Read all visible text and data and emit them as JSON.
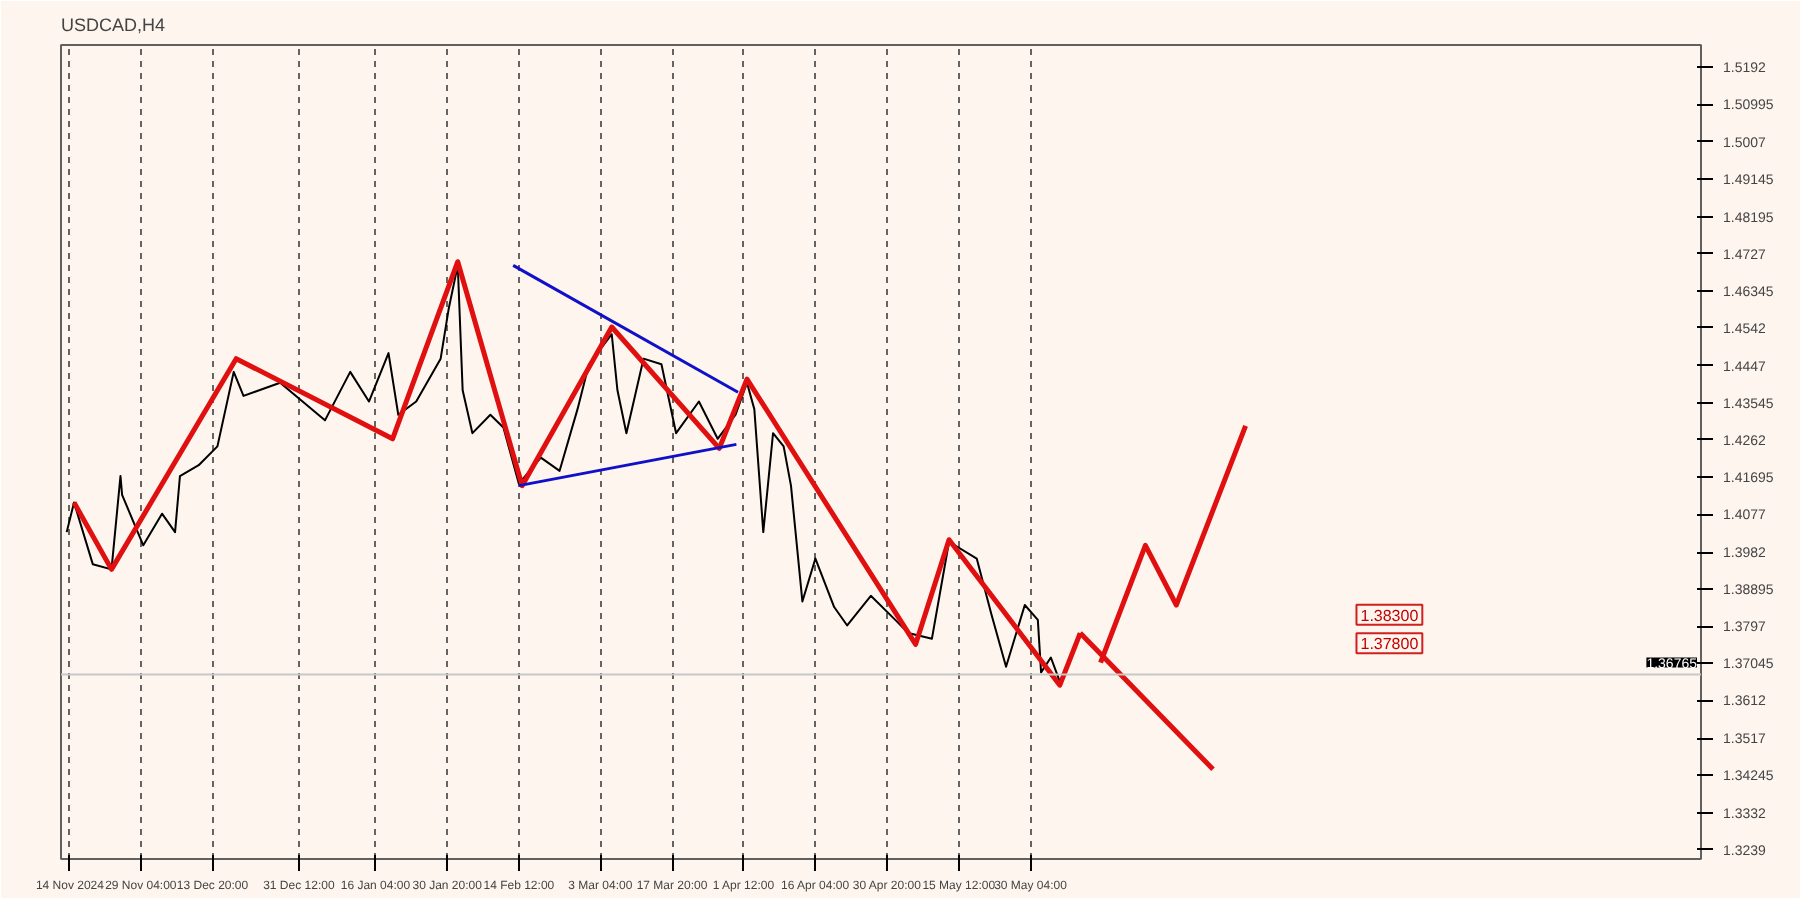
{
  "chart_data": {
    "type": "line",
    "title": "USDCAD,H4",
    "xlim": [
      "2024-11-12T20:00",
      "2025-10-14T08:00"
    ],
    "ylim": [
      1.3216,
      1.5248
    ],
    "xticks": [
      {
        "value": "2024-11-14T16:00",
        "label": "14 Nov 2024"
      },
      {
        "value": "2024-11-29T04:00",
        "label": "29 Nov 04:00"
      },
      {
        "value": "2024-12-13T20:00",
        "label": "13 Dec 20:00"
      },
      {
        "value": "2024-12-31T12:00",
        "label": "31 Dec 12:00"
      },
      {
        "value": "2025-01-16T04:00",
        "label": "16 Jan 04:00"
      },
      {
        "value": "2025-01-30T20:00",
        "label": "30 Jan 20:00"
      },
      {
        "value": "2025-02-14T12:00",
        "label": "14 Feb 12:00"
      },
      {
        "value": "2025-03-03T04:00",
        "label": "3 Mar 04:00"
      },
      {
        "value": "2025-03-17T20:00",
        "label": "17 Mar 20:00"
      },
      {
        "value": "2025-04-01T12:00",
        "label": "1 Apr 12:00"
      },
      {
        "value": "2025-04-16T04:00",
        "label": "16 Apr 04:00"
      },
      {
        "value": "2025-04-30T20:00",
        "label": "30 Apr 20:00"
      },
      {
        "value": "2025-05-15T12:00",
        "label": "15 May 12:00"
      },
      {
        "value": "2025-05-30T04:00",
        "label": "30 May 04:00"
      }
    ],
    "yticks": [
      1.3239,
      1.3332,
      1.34245,
      1.3517,
      1.3612,
      1.37045,
      1.3797,
      1.38895,
      1.3982,
      1.4077,
      1.41695,
      1.4262,
      1.43545,
      1.4447,
      1.4542,
      1.46345,
      1.4727,
      1.48195,
      1.49145,
      1.5007,
      1.50995,
      1.5192
    ],
    "grid": "x",
    "line_style": "solid",
    "marker": "none",
    "series": [
      {
        "color": "#000000",
        "x": [
          "2024-11-14T00:00",
          "2024-11-15T12:00",
          "2024-11-19T08:00",
          "2024-11-23T04:00",
          "2024-11-25T00:00",
          "2024-11-25T08:00",
          "2024-11-29T16:00",
          "2024-12-03T12:00",
          "2024-12-06T04:00",
          "2024-12-07T04:00",
          "2024-12-11T00:00",
          "2024-12-14T20:00",
          "2024-12-18T04:00",
          "2024-12-20T04:00",
          "2024-12-27T16:00",
          "2025-01-05T20:00",
          "2025-01-11T00:00",
          "2025-01-14T20:00",
          "2025-01-18T20:00",
          "2025-01-20T20:00",
          "2025-01-24T12:00",
          "2025-01-29T12:00",
          "2025-01-31T04:00",
          "2025-02-02T00:00",
          "2025-02-03T00:00",
          "2025-02-05T00:00",
          "2025-02-08T16:00",
          "2025-02-11T08:00",
          "2025-02-14T12:00",
          "2025-02-19T00:00",
          "2025-02-22T20:00",
          "2025-02-26T12:00",
          "2025-02-28T20:00",
          "2025-03-05T12:00",
          "2025-03-06T16:00",
          "2025-03-08T12:00",
          "2025-03-12T00:00",
          "2025-03-15T16:00",
          "2025-03-18T16:00",
          "2025-03-23T08:00",
          "2025-03-27T04:00",
          "2025-03-30T20:00",
          "2025-04-02T04:00",
          "2025-04-03T16:00",
          "2025-04-05T12:00",
          "2025-04-07T12:00",
          "2025-04-09T16:00",
          "2025-04-11T04:00",
          "2025-04-13T12:00",
          "2025-04-16T04:00",
          "2025-04-20T00:00",
          "2025-04-22T16:00",
          "2025-04-27T12:00",
          "2025-05-02T12:00",
          "2025-05-05T04:00",
          "2025-05-10T00:00",
          "2025-05-13T12:00",
          "2025-05-19T04:00",
          "2025-05-22T04:00",
          "2025-05-25T04:00",
          "2025-05-29T00:00",
          "2025-05-31T16:00",
          "2025-06-01T08:00",
          "2025-06-03T08:00",
          "2025-06-05T04:00"
        ],
        "values": [
          1.4032,
          1.4106,
          1.3952,
          1.3939,
          1.4172,
          1.4125,
          1.3999,
          1.4078,
          1.4032,
          1.4172,
          1.4199,
          1.4246,
          1.4432,
          1.4372,
          1.4405,
          1.4311,
          1.4432,
          1.4358,
          1.4479,
          1.4325,
          1.4358,
          1.4465,
          1.4591,
          1.4698,
          1.4386,
          1.4279,
          1.4325,
          1.4293,
          1.4153,
          1.4218,
          1.4185,
          1.4339,
          1.4451,
          1.4526,
          1.4386,
          1.4279,
          1.4465,
          1.4451,
          1.4279,
          1.4358,
          1.4265,
          1.4325,
          1.4405,
          1.4339,
          1.4032,
          1.4279,
          1.4246,
          1.4148,
          1.3859,
          1.3966,
          1.3845,
          1.3799,
          1.3873,
          1.3813,
          1.378,
          1.3766,
          1.4008,
          1.3966,
          1.3827,
          1.3696,
          1.385,
          1.3813,
          1.3682,
          1.3719,
          1.3659
        ]
      },
      {
        "color": "#e01010",
        "x": [
          "2024-11-15T12:00",
          "2024-11-23T04:00",
          "2024-12-18T16:00",
          "2025-01-19T16:00",
          "2025-02-02T00:00",
          "2025-02-15T04:00",
          "2025-03-05T12:00",
          "2025-03-27T12:00",
          "2025-04-02T04:00",
          "2025-05-06T16:00",
          "2025-05-13T12:00",
          "2025-06-05T04:00",
          "2025-06-09T08:00"
        ],
        "values": [
          1.4106,
          1.3939,
          1.4465,
          1.4265,
          1.4707,
          1.4148,
          1.4544,
          1.4241,
          1.4414,
          1.3752,
          1.4013,
          1.365,
          1.378
        ]
      },
      {
        "color": "#e01010",
        "x": [
          "2025-06-09T08:00",
          "2025-07-06T12:00"
        ],
        "values": [
          1.378,
          1.344
        ]
      },
      {
        "color": "#e01010",
        "x": [
          "2025-06-13T12:00",
          "2025-06-22T16:00",
          "2025-06-29T00:00",
          "2025-07-13T04:00"
        ],
        "values": [
          1.3706,
          1.3999,
          1.385,
          1.4297
        ]
      },
      {
        "color": "#1010c8",
        "x": [
          "2025-02-13T08:00",
          "2025-03-31T08:00"
        ],
        "values": [
          1.4698,
          1.4381
        ]
      },
      {
        "color": "#1010c8",
        "x": [
          "2025-02-14T12:00",
          "2025-03-31T00:00"
        ],
        "values": [
          1.4148,
          1.4251
        ]
      }
    ],
    "ref_lines": [
      {
        "axis": "y",
        "value": 1.36765,
        "label": "1.36765",
        "color": "#c8c8c8"
      }
    ],
    "annotations": [
      "1.38300",
      "1.37800"
    ]
  }
}
